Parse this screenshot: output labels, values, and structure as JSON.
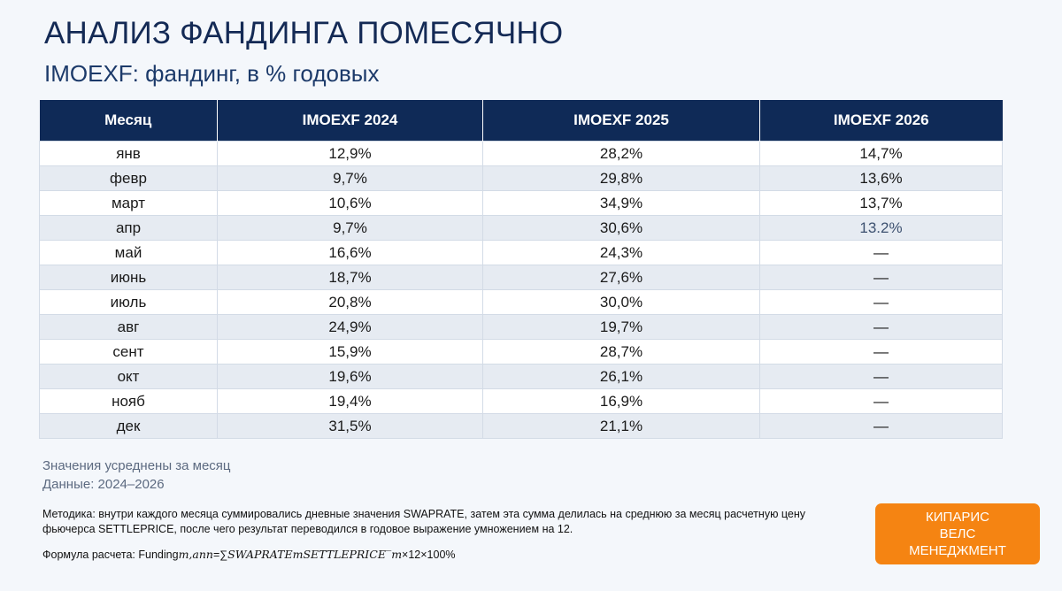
{
  "header": {
    "title": "АНАЛИЗ ФАНДИНГА ПОМЕСЯЧНО",
    "subtitle": "IMOEXF: фандинг, в % годовых"
  },
  "table": {
    "columns": [
      "Месяц",
      "IMOEXF 2024",
      "IMOEXF 2025",
      "IMOEXF 2026"
    ],
    "rows": [
      [
        "янв",
        "12,9%",
        "28,2%",
        "14,7%"
      ],
      [
        "февр",
        "9,7%",
        "29,8%",
        "13,6%"
      ],
      [
        "март",
        "10,6%",
        "34,9%",
        "13,7%"
      ],
      [
        "апр",
        "9,7%",
        "30,6%",
        "13.2%"
      ],
      [
        "май",
        "16,6%",
        "24,3%",
        "—"
      ],
      [
        "июнь",
        "18,7%",
        "27,6%",
        "—"
      ],
      [
        "июль",
        "20,8%",
        "30,0%",
        "—"
      ],
      [
        "авг",
        "24,9%",
        "19,7%",
        "—"
      ],
      [
        "сент",
        "15,9%",
        "28,7%",
        "—"
      ],
      [
        "окт",
        "19,6%",
        "26,1%",
        "—"
      ],
      [
        "нояб",
        "19,4%",
        "16,9%",
        "—"
      ],
      [
        "дек",
        "31,5%",
        "21,1%",
        "—"
      ]
    ]
  },
  "notes": {
    "averaged": "Значения усреднены за месяц",
    "data_range": "Данные: 2024–2026"
  },
  "method": {
    "text": "Методика: внутри каждого месяца суммировались дневные значения SWAPRATE, затем эта сумма делилась на среднюю за месяц расчетную цену фьючерса SETTLEPRICE, после чего результат переводился в годовое выражение умножением на 12."
  },
  "formula": {
    "prefix": "Формула расчета: Funding",
    "subscript": "m,ann",
    "eq": "=∑",
    "expr": "SWAPRATEmSETTLEPRICE‾m",
    "suffix": "×12×100%"
  },
  "brand": {
    "line1": "КИПАРИС",
    "line2": "ВЕЛС",
    "line3": "МЕНЕДЖМЕНТ",
    "color": "#f58412"
  }
}
